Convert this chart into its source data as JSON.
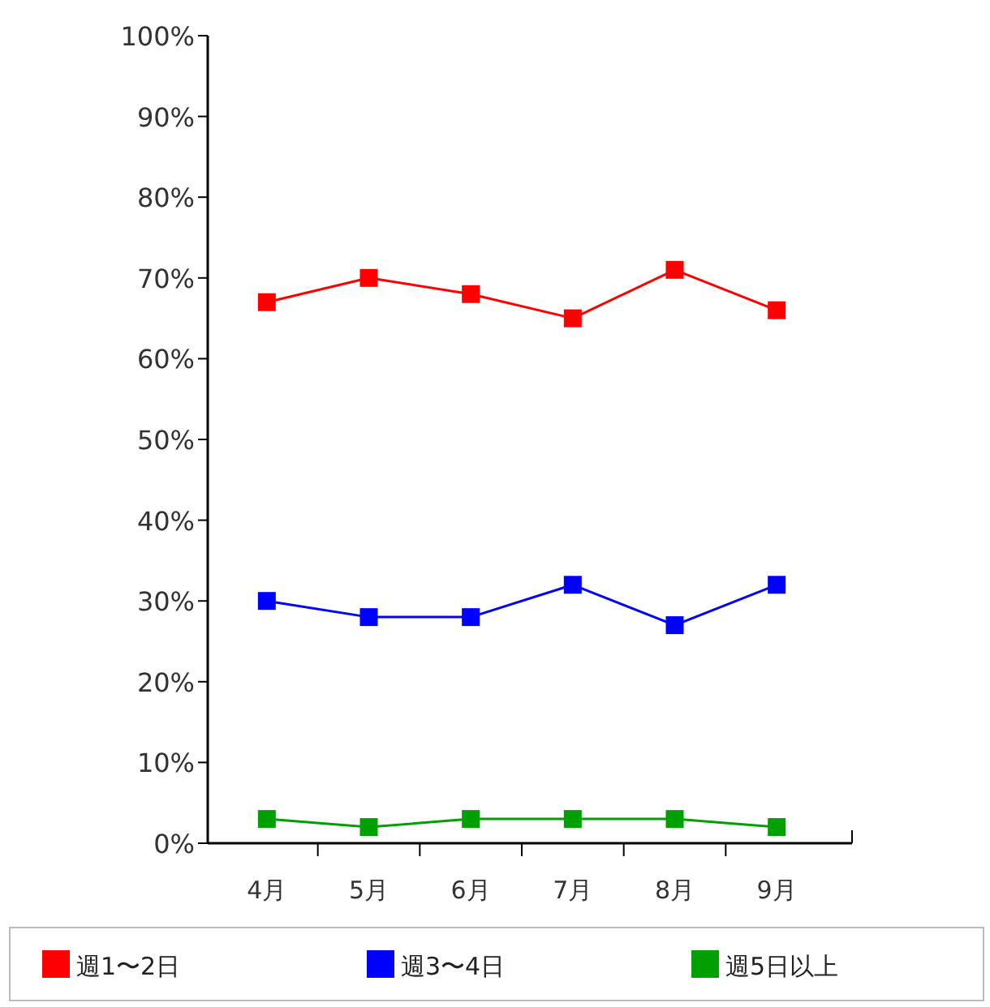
{
  "chart_data": {
    "type": "line",
    "categories": [
      "4月",
      "5月",
      "6月",
      "7月",
      "8月",
      "9月"
    ],
    "series": [
      {
        "name": "週1〜2日",
        "color": "#ff0000",
        "values": [
          67,
          70,
          68,
          65,
          71,
          66
        ]
      },
      {
        "name": "週3〜4日",
        "color": "#0000ff",
        "values": [
          30,
          28,
          28,
          32,
          27,
          32
        ]
      },
      {
        "name": "週5日以上",
        "color": "#00a000",
        "values": [
          3,
          2,
          3,
          3,
          3,
          2
        ]
      }
    ],
    "ylim": [
      0,
      100
    ],
    "yticks": [
      {
        "value": 0,
        "label": "0%"
      },
      {
        "value": 10,
        "label": "10%"
      },
      {
        "value": 20,
        "label": "20%"
      },
      {
        "value": 30,
        "label": "30%"
      },
      {
        "value": 40,
        "label": "40%"
      },
      {
        "value": 50,
        "label": "50%"
      },
      {
        "value": 60,
        "label": "60%"
      },
      {
        "value": 70,
        "label": "70%"
      },
      {
        "value": 80,
        "label": "80%"
      },
      {
        "value": 90,
        "label": "90%"
      },
      {
        "value": 100,
        "label": "100%"
      }
    ],
    "marker": "square",
    "legend": "bottom",
    "grid": false
  }
}
